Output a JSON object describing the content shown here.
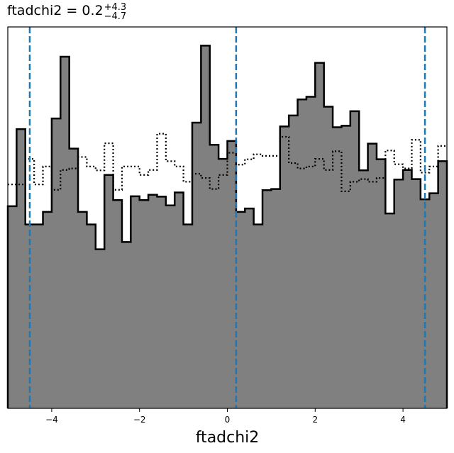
{
  "chart_data": {
    "type": "histogram",
    "title": {
      "base": "ftadchi2 = 0.2",
      "sup": "+4.3",
      "sub": "−4.7"
    },
    "xlabel": "ftadchi2",
    "ylabel": "",
    "xlim": [
      -5,
      5
    ],
    "ylim": [
      0,
      1
    ],
    "x_ticks": [
      -4,
      -2,
      0,
      2,
      4
    ],
    "x_tick_labels": [
      "−4",
      "−2",
      "0",
      "2",
      "4"
    ],
    "y_ticks_visible": false,
    "bins": [
      -5.0,
      -4.8,
      -4.6,
      -4.4,
      -4.2,
      -4.0,
      -3.8,
      -3.6,
      -3.4,
      -3.2,
      -3.0,
      -2.8,
      -2.6,
      -2.4,
      -2.2,
      -2.0,
      -1.8,
      -1.6,
      -1.4,
      -1.2,
      -1.0,
      -0.8,
      -0.6,
      -0.4,
      -0.2,
      0.0,
      0.2,
      0.4,
      0.6,
      0.8,
      1.0,
      1.2,
      1.4,
      1.6,
      1.8,
      2.0,
      2.2,
      2.4,
      2.6,
      2.8,
      3.0,
      3.2,
      3.4,
      3.6,
      3.8,
      4.0,
      4.2,
      4.4,
      4.6,
      4.8,
      5.0
    ],
    "series": [
      {
        "style": "filled-step",
        "fill": "#808080",
        "stroke": "#000000",
        "values": [
          0.53,
          0.732,
          0.482,
          0.482,
          0.515,
          0.76,
          0.922,
          0.681,
          0.515,
          0.482,
          0.417,
          0.612,
          0.546,
          0.436,
          0.556,
          0.546,
          0.56,
          0.555,
          0.532,
          0.566,
          0.482,
          0.749,
          0.951,
          0.691,
          0.654,
          0.701,
          0.515,
          0.524,
          0.482,
          0.572,
          0.575,
          0.739,
          0.768,
          0.81,
          0.817,
          0.906,
          0.791,
          0.737,
          0.741,
          0.779,
          0.624,
          0.694,
          0.653,
          0.511,
          0.6,
          0.625,
          0.601,
          0.548,
          0.564,
          0.648
        ]
      },
      {
        "style": "dotted-step",
        "stroke": "#000000",
        "values": [
          0.587,
          0.587,
          0.654,
          0.587,
          0.634,
          0.573,
          0.625,
          0.629,
          0.659,
          0.634,
          0.624,
          0.695,
          0.573,
          0.634,
          0.634,
          0.612,
          0.625,
          0.72,
          0.648,
          0.634,
          0.594,
          0.615,
          0.604,
          0.575,
          0.612,
          0.67,
          0.639,
          0.653,
          0.666,
          0.662,
          0.662,
          0.712,
          0.643,
          0.629,
          0.634,
          0.654,
          0.625,
          0.674,
          0.569,
          0.594,
          0.601,
          0.594,
          0.604,
          0.676,
          0.64,
          0.629,
          0.704,
          0.618,
          0.634,
          0.688
        ]
      }
    ],
    "vlines": [
      {
        "x": -4.5,
        "style": "dashed",
        "color": "#1f77b4"
      },
      {
        "x": 0.2,
        "style": "dashed",
        "color": "#1f77b4"
      },
      {
        "x": 4.5,
        "style": "dashed",
        "color": "#1f77b4"
      }
    ],
    "grid": false,
    "legend": "none"
  }
}
